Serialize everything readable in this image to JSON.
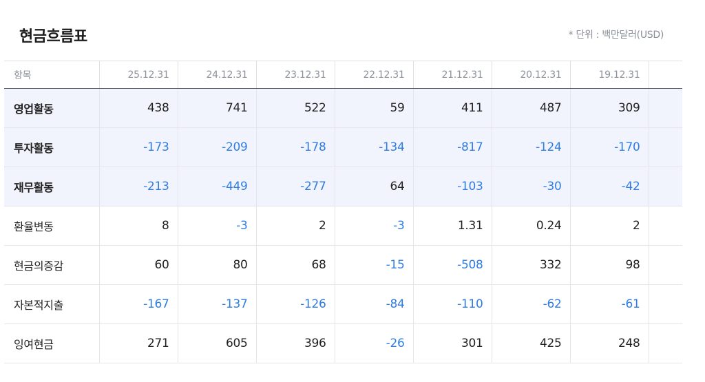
{
  "header": {
    "title": "현금흐름표",
    "unit_note": "* 단위 : 백만달러(USD)"
  },
  "table": {
    "item_header": "항목",
    "columns": [
      "25.12.31",
      "24.12.31",
      "23.12.31",
      "22.12.31",
      "21.12.31",
      "20.12.31",
      "19.12.31"
    ],
    "rows": [
      {
        "label": "영업활동",
        "major": true,
        "values": [
          "438",
          "741",
          "522",
          "59",
          "411",
          "487",
          "309"
        ]
      },
      {
        "label": "투자활동",
        "major": true,
        "values": [
          "-173",
          "-209",
          "-178",
          "-134",
          "-817",
          "-124",
          "-170"
        ]
      },
      {
        "label": "재무활동",
        "major": true,
        "values": [
          "-213",
          "-449",
          "-277",
          "64",
          "-103",
          "-30",
          "-42"
        ]
      },
      {
        "label": "환율변동",
        "major": false,
        "values": [
          "8",
          "-3",
          "2",
          "-3",
          "1.31",
          "0.24",
          "2"
        ]
      },
      {
        "label": "현금의증감",
        "major": false,
        "values": [
          "60",
          "80",
          "68",
          "-15",
          "-508",
          "332",
          "98"
        ]
      },
      {
        "label": "자본적지출",
        "major": false,
        "values": [
          "-167",
          "-137",
          "-126",
          "-84",
          "-110",
          "-62",
          "-61"
        ]
      },
      {
        "label": "잉여현금",
        "major": false,
        "values": [
          "271",
          "605",
          "396",
          "-26",
          "301",
          "425",
          "248"
        ]
      }
    ]
  },
  "colors": {
    "negative": "#2f7de1",
    "major_row_bg": "#f2f4fd",
    "text": "#222222",
    "muted": "#8c919b"
  }
}
